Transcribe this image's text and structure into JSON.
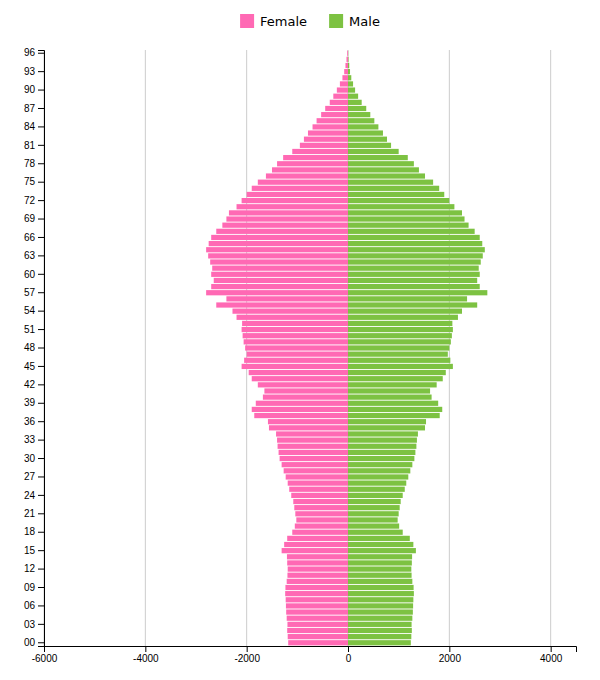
{
  "chart_data": {
    "type": "bar",
    "orientation": "horizontal",
    "categories": [
      "00",
      null,
      null,
      "03",
      null,
      null,
      "06",
      null,
      null,
      "09",
      null,
      null,
      "12",
      null,
      null,
      "15",
      null,
      null,
      "18",
      null,
      null,
      "21",
      null,
      null,
      "24",
      null,
      null,
      "27",
      null,
      null,
      "30",
      null,
      null,
      "33",
      null,
      null,
      "36",
      null,
      null,
      "39",
      null,
      null,
      "42",
      null,
      null,
      "45",
      null,
      null,
      "48",
      null,
      null,
      "51",
      null,
      null,
      "54",
      null,
      null,
      "57",
      null,
      null,
      "60",
      null,
      null,
      "63",
      null,
      null,
      "66",
      null,
      null,
      "69",
      null,
      null,
      "72",
      null,
      null,
      "75",
      null,
      null,
      "78",
      null,
      null,
      "81",
      null,
      null,
      "84",
      null,
      null,
      "87",
      null,
      null,
      "90",
      null,
      null,
      "93",
      null,
      null,
      "96"
    ],
    "series": [
      {
        "name": "Female",
        "color": "#FF69B4",
        "values": [
          -1180,
          -1190,
          -1200,
          -1195,
          -1210,
          -1220,
          -1225,
          -1230,
          -1240,
          -1235,
          -1210,
          -1195,
          -1190,
          -1200,
          -1205,
          -1310,
          -1260,
          -1200,
          -1100,
          -1050,
          -1020,
          -1040,
          -1060,
          -1080,
          -1120,
          -1160,
          -1190,
          -1230,
          -1270,
          -1310,
          -1350,
          -1370,
          -1390,
          -1400,
          -1420,
          -1560,
          -1580,
          -1850,
          -1900,
          -1820,
          -1680,
          -1650,
          -1780,
          -1900,
          -1960,
          -2100,
          -2050,
          -2000,
          -2030,
          -2060,
          -2080,
          -2100,
          -2090,
          -2200,
          -2280,
          -2600,
          -2400,
          -2800,
          -2700,
          -2650,
          -2700,
          -2680,
          -2720,
          -2760,
          -2800,
          -2750,
          -2700,
          -2600,
          -2480,
          -2400,
          -2350,
          -2200,
          -2100,
          -2000,
          -1900,
          -1780,
          -1620,
          -1500,
          -1400,
          -1280,
          -1100,
          -950,
          -870,
          -790,
          -700,
          -620,
          -530,
          -450,
          -360,
          -290,
          -220,
          -160,
          -110,
          -75,
          -50,
          -30,
          -15
        ]
      },
      {
        "name": "Male",
        "color": "#7DC242",
        "values": [
          1240,
          1250,
          1260,
          1255,
          1270,
          1280,
          1285,
          1290,
          1300,
          1295,
          1270,
          1255,
          1250,
          1260,
          1265,
          1340,
          1290,
          1220,
          1080,
          1010,
          980,
          1000,
          1020,
          1040,
          1080,
          1120,
          1150,
          1190,
          1230,
          1270,
          1310,
          1330,
          1350,
          1360,
          1380,
          1520,
          1540,
          1810,
          1860,
          1780,
          1650,
          1620,
          1750,
          1870,
          1930,
          2070,
          2020,
          1970,
          2000,
          2030,
          2050,
          2070,
          2060,
          2170,
          2250,
          2550,
          2350,
          2750,
          2600,
          2550,
          2600,
          2580,
          2620,
          2660,
          2700,
          2650,
          2600,
          2500,
          2380,
          2300,
          2250,
          2100,
          2000,
          1900,
          1800,
          1680,
          1520,
          1400,
          1300,
          1180,
          1000,
          850,
          770,
          690,
          600,
          520,
          440,
          360,
          270,
          200,
          140,
          100,
          65,
          40,
          25,
          10,
          4
        ]
      }
    ],
    "xlim": [
      -6000,
      4500
    ],
    "xticks": [
      -6000,
      -4000,
      -2000,
      0,
      2000,
      4000
    ],
    "grid": true,
    "legend": "top"
  }
}
